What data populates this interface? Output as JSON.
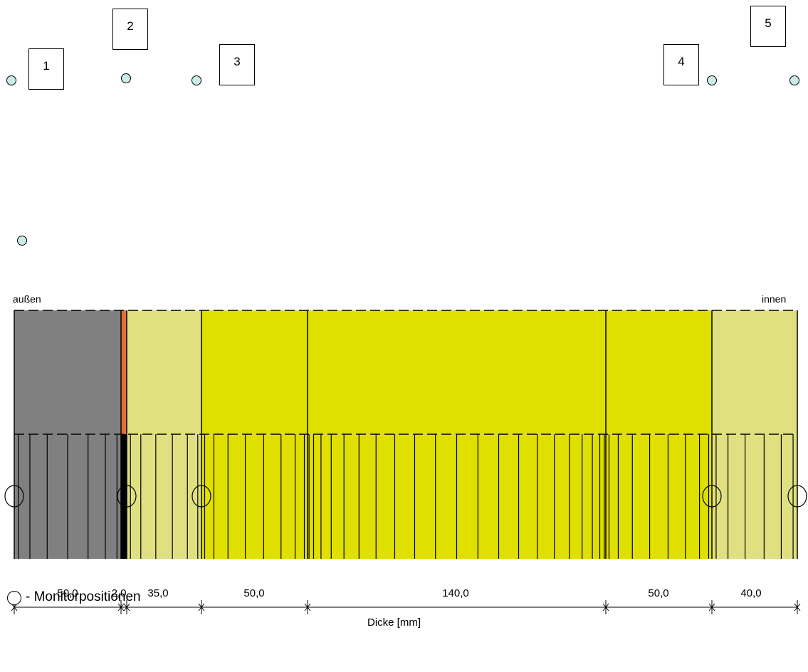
{
  "monitor_labels": [
    "1",
    "2",
    "3",
    "4",
    "5"
  ],
  "side_labels": {
    "outside": "außen",
    "inside": "innen"
  },
  "axis": {
    "label": "Dicke [mm]"
  },
  "layers": [
    {
      "thickness_label": "50,0",
      "thickness_mm": 50,
      "color": "#808080"
    },
    {
      "thickness_label": "2,0",
      "thickness_mm": 2,
      "color": "#e07030"
    },
    {
      "thickness_label": "35,0",
      "thickness_mm": 35,
      "color": "#e0e080"
    },
    {
      "thickness_label": "50,0",
      "thickness_mm": 50,
      "color": "#e0e000"
    },
    {
      "thickness_label": "140,0",
      "thickness_mm": 140,
      "color": "#e0e000"
    },
    {
      "thickness_label": "50,0",
      "thickness_mm": 50,
      "color": "#e0e000"
    },
    {
      "thickness_label": "40,0",
      "thickness_mm": 40,
      "color": "#e0e080"
    }
  ],
  "legend": {
    "text": "- Monitorpositionen"
  }
}
